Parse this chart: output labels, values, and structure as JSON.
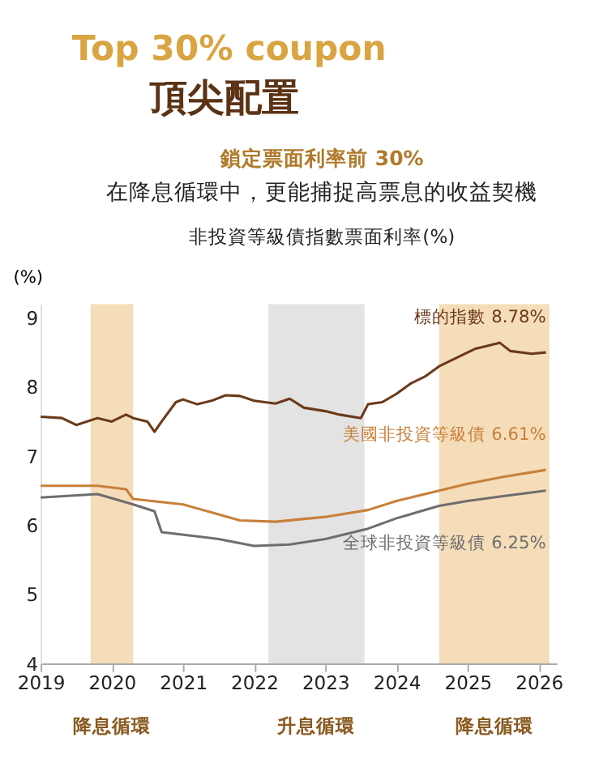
{
  "chart_data": {
    "type": "line",
    "title": "Top 30% coupon",
    "subtitle": "頂尖配置",
    "annotations": [
      "鎖定票面利率前 30%",
      "在降息循環中，更能捕捉高票息的收益契機",
      "非投資等級債指數票面利率(%)"
    ],
    "ylabel": "(%)",
    "xlim": [
      2019,
      2026.25
    ],
    "xticks": [
      2019,
      2020,
      2021,
      2022,
      2023,
      2024,
      2025,
      2026
    ],
    "ylim": [
      4,
      9.2
    ],
    "yticks": [
      4,
      5,
      6,
      7,
      8,
      9
    ],
    "grid": false,
    "marker": "none",
    "line_style": "solid",
    "bands": [
      {
        "axis": "x",
        "from": 2019.7,
        "to": 2020.3,
        "label": "降息循環",
        "color": "#f3d5a8"
      },
      {
        "axis": "x",
        "from": 2022.2,
        "to": 2023.55,
        "label": "升息循環",
        "color": "#dcdcdc"
      },
      {
        "axis": "x",
        "from": 2024.6,
        "to": 2026.15,
        "label": "降息循環",
        "color": "#f3d5a8"
      }
    ],
    "series": [
      {
        "name": "標的指數 8.78%",
        "color": "#6b3a1a",
        "x": [
          2019.0,
          2019.3,
          2019.5,
          2019.8,
          2020.0,
          2020.2,
          2020.3,
          2020.5,
          2020.6,
          2020.7,
          2020.9,
          2021.0,
          2021.2,
          2021.4,
          2021.6,
          2021.8,
          2022.0,
          2022.3,
          2022.5,
          2022.7,
          2023.0,
          2023.2,
          2023.5,
          2023.6,
          2023.8,
          2024.0,
          2024.2,
          2024.4,
          2024.6,
          2024.9,
          2025.1,
          2025.3,
          2025.45,
          2025.6,
          2025.9,
          2026.1
        ],
        "values": [
          7.57,
          7.55,
          7.45,
          7.55,
          7.5,
          7.6,
          7.55,
          7.5,
          7.35,
          7.5,
          7.78,
          7.82,
          7.75,
          7.8,
          7.88,
          7.87,
          7.8,
          7.76,
          7.83,
          7.7,
          7.65,
          7.6,
          7.55,
          7.75,
          7.78,
          7.9,
          8.05,
          8.15,
          8.3,
          8.45,
          8.55,
          8.6,
          8.64,
          8.52,
          8.48,
          8.5
        ]
      },
      {
        "name": "美國非投資等級債 6.61%",
        "color": "#c8803a",
        "x": [
          2019.0,
          2019.8,
          2020.2,
          2020.3,
          2021.0,
          2021.8,
          2022.3,
          2023.0,
          2023.6,
          2024.0,
          2024.6,
          2025.0,
          2025.5,
          2026.1
        ],
        "values": [
          6.57,
          6.57,
          6.52,
          6.38,
          6.3,
          6.07,
          6.05,
          6.12,
          6.22,
          6.35,
          6.5,
          6.6,
          6.7,
          6.8
        ]
      },
      {
        "name": "全球非投資等級債 6.25%",
        "color": "#6e6e6e",
        "x": [
          2019.0,
          2019.8,
          2020.3,
          2020.6,
          2020.7,
          2021.5,
          2022.0,
          2022.5,
          2023.0,
          2023.6,
          2024.0,
          2024.6,
          2025.0,
          2025.5,
          2026.1
        ],
        "values": [
          6.4,
          6.45,
          6.3,
          6.2,
          5.9,
          5.8,
          5.7,
          5.72,
          5.8,
          5.95,
          6.1,
          6.28,
          6.35,
          6.42,
          6.5
        ]
      }
    ]
  }
}
